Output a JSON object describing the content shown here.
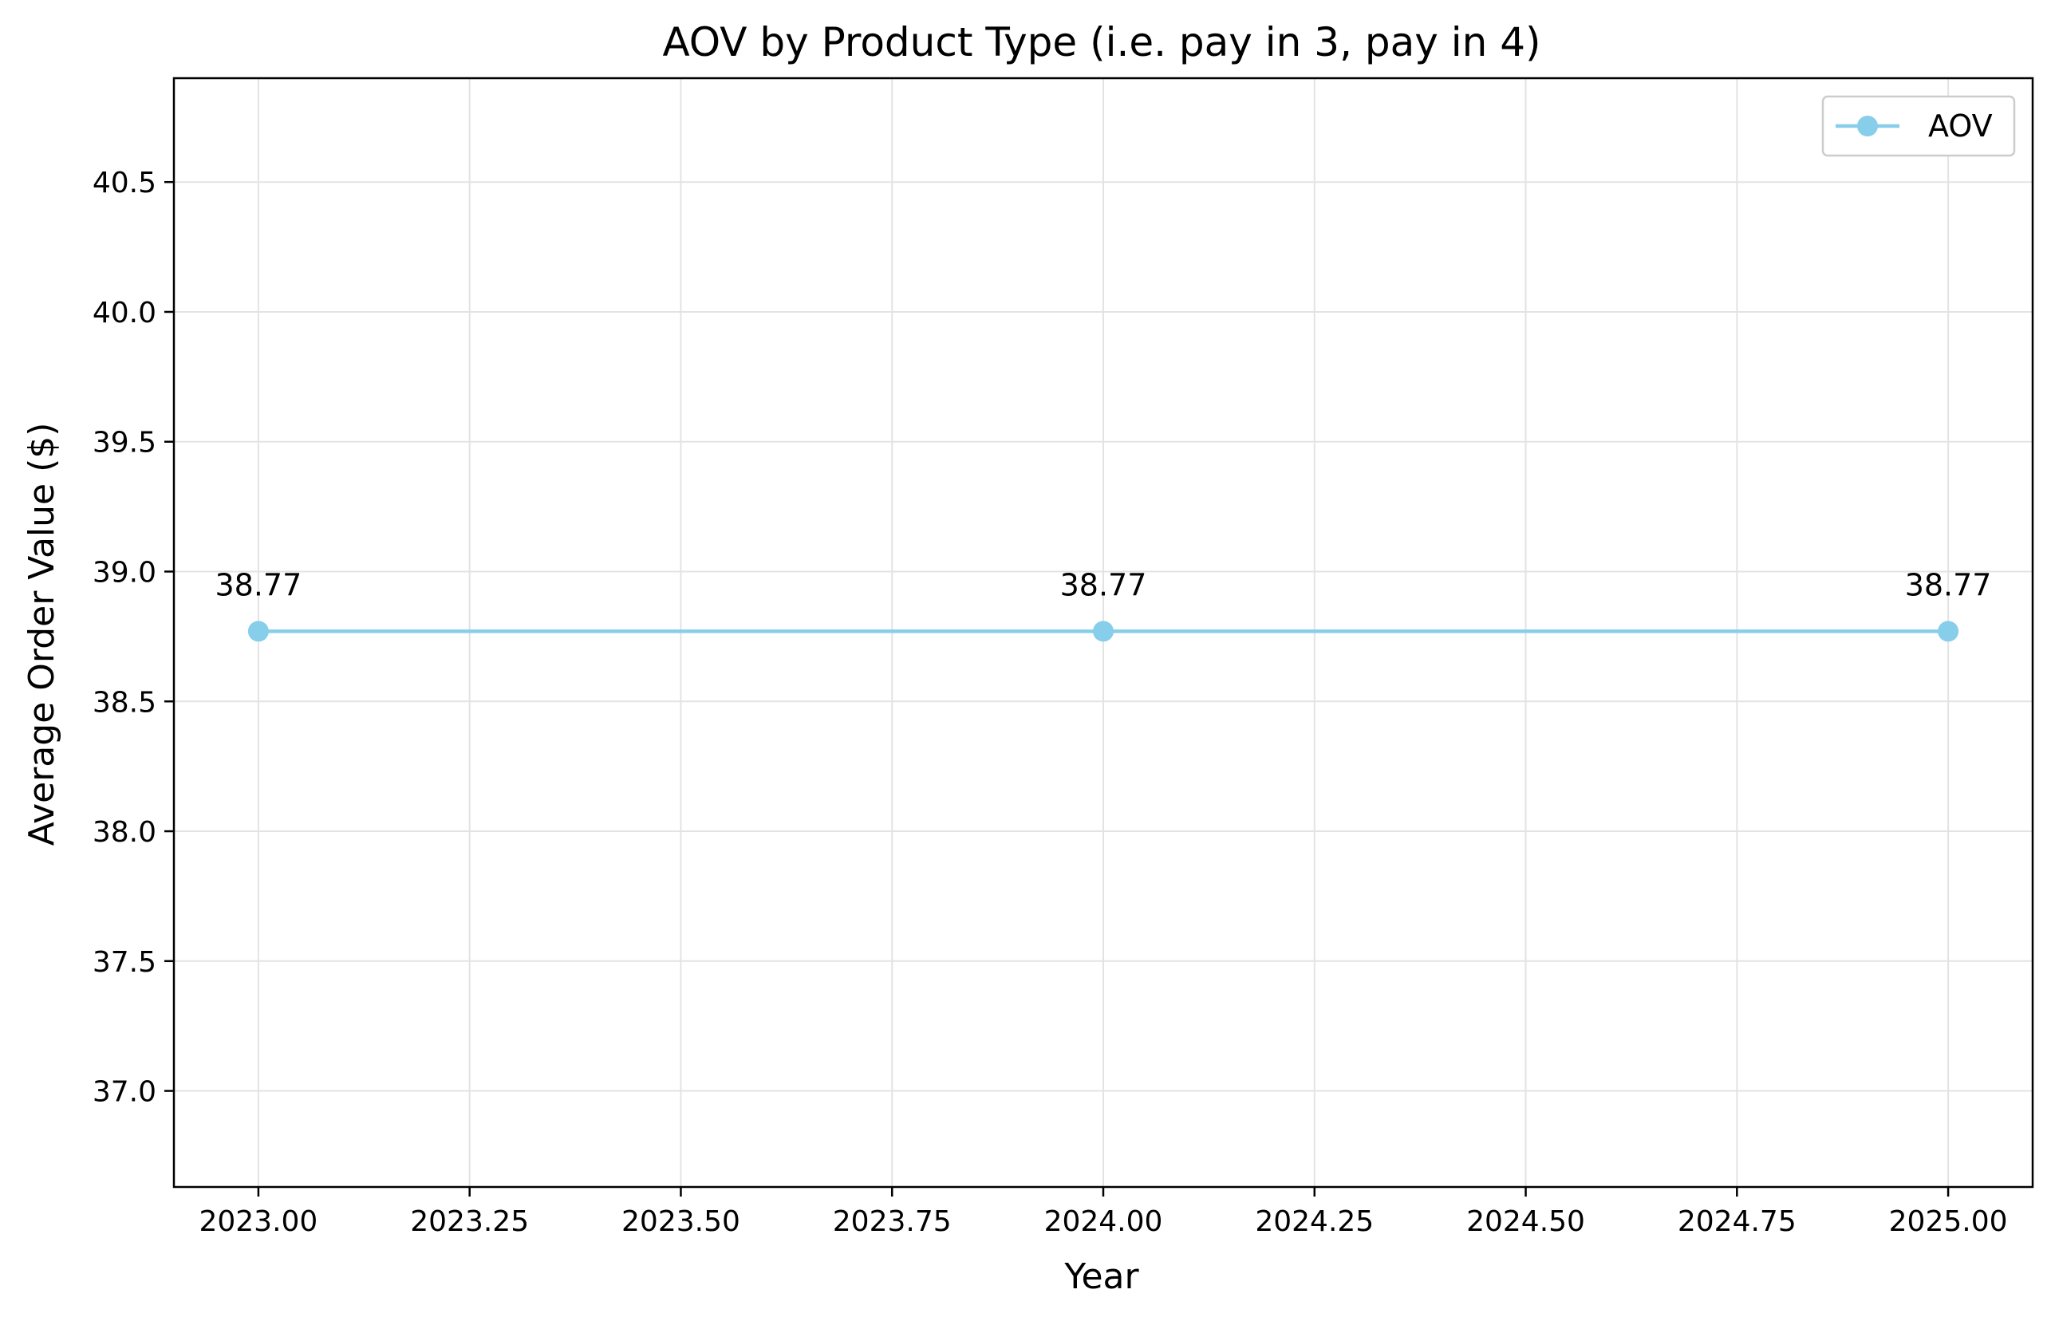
{
  "chart_data": {
    "type": "line",
    "title": "AOV by Product Type (i.e. pay in 3, pay in 4)",
    "xlabel": "Year",
    "ylabel": "Average Order Value ($)",
    "x": [
      2023,
      2024,
      2025
    ],
    "series": [
      {
        "name": "AOV",
        "values": [
          38.77,
          38.77,
          38.77
        ],
        "color": "#87CEEB"
      }
    ],
    "data_labels": [
      "38.77",
      "38.77",
      "38.77"
    ],
    "xlim": [
      2022.9,
      2025.1
    ],
    "ylim": [
      36.63,
      40.9
    ],
    "xticks": [
      2023.0,
      2023.25,
      2023.5,
      2023.75,
      2024.0,
      2024.25,
      2024.5,
      2024.75,
      2025.0
    ],
    "xtick_labels": [
      "2023.00",
      "2023.25",
      "2023.50",
      "2023.75",
      "2024.00",
      "2024.25",
      "2024.50",
      "2024.75",
      "2025.00"
    ],
    "yticks": [
      37.0,
      37.5,
      38.0,
      38.5,
      39.0,
      39.5,
      40.0,
      40.5
    ],
    "ytick_labels": [
      "37.0",
      "37.5",
      "38.0",
      "38.5",
      "39.0",
      "39.5",
      "40.0",
      "40.5"
    ],
    "grid": true,
    "legend_position": "top-right",
    "marker": "circle"
  }
}
